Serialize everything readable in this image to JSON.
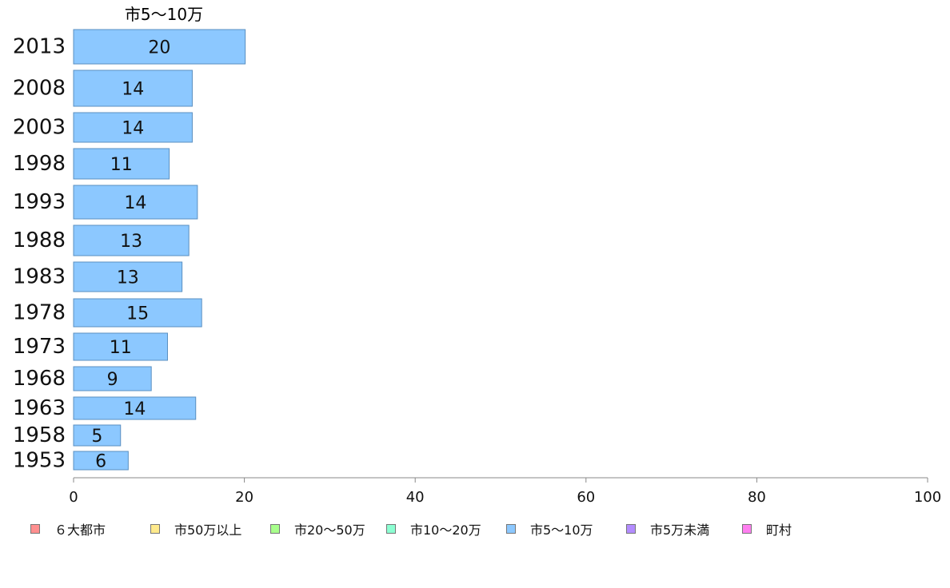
{
  "chart_data": {
    "type": "bar",
    "orientation": "horizontal",
    "series_label": "市5〜10万",
    "categories": [
      "2013",
      "2008",
      "2003",
      "1998",
      "1993",
      "1988",
      "1983",
      "1978",
      "1973",
      "1968",
      "1963",
      "1958",
      "1953"
    ],
    "values": [
      20,
      14,
      14,
      11,
      14,
      13,
      13,
      15,
      11,
      9,
      14,
      5,
      6
    ],
    "bar_lengths": [
      20.1,
      13.9,
      13.9,
      11.2,
      14.5,
      13.5,
      12.7,
      15.0,
      11.0,
      9.1,
      14.3,
      5.5,
      6.4
    ],
    "xlim": [
      0,
      100
    ],
    "xticks": [
      "0",
      "20",
      "40",
      "60",
      "80",
      "100"
    ],
    "bar_color": "#8cc8ff",
    "bar_border": "#5a8fc0",
    "legend": [
      {
        "label": "６大都市",
        "color": "#ff8f8f"
      },
      {
        "label": "市50万以上",
        "color": "#ffea8c"
      },
      {
        "label": "市20〜50万",
        "color": "#a8ff8c"
      },
      {
        "label": "市10〜20万",
        "color": "#8cffd2"
      },
      {
        "label": "市5〜10万",
        "color": "#8cc8ff"
      },
      {
        "label": "市5万未満",
        "color": "#b38cff"
      },
      {
        "label": "町村",
        "color": "#ff7ff0"
      }
    ],
    "legend_position": "bottom"
  }
}
